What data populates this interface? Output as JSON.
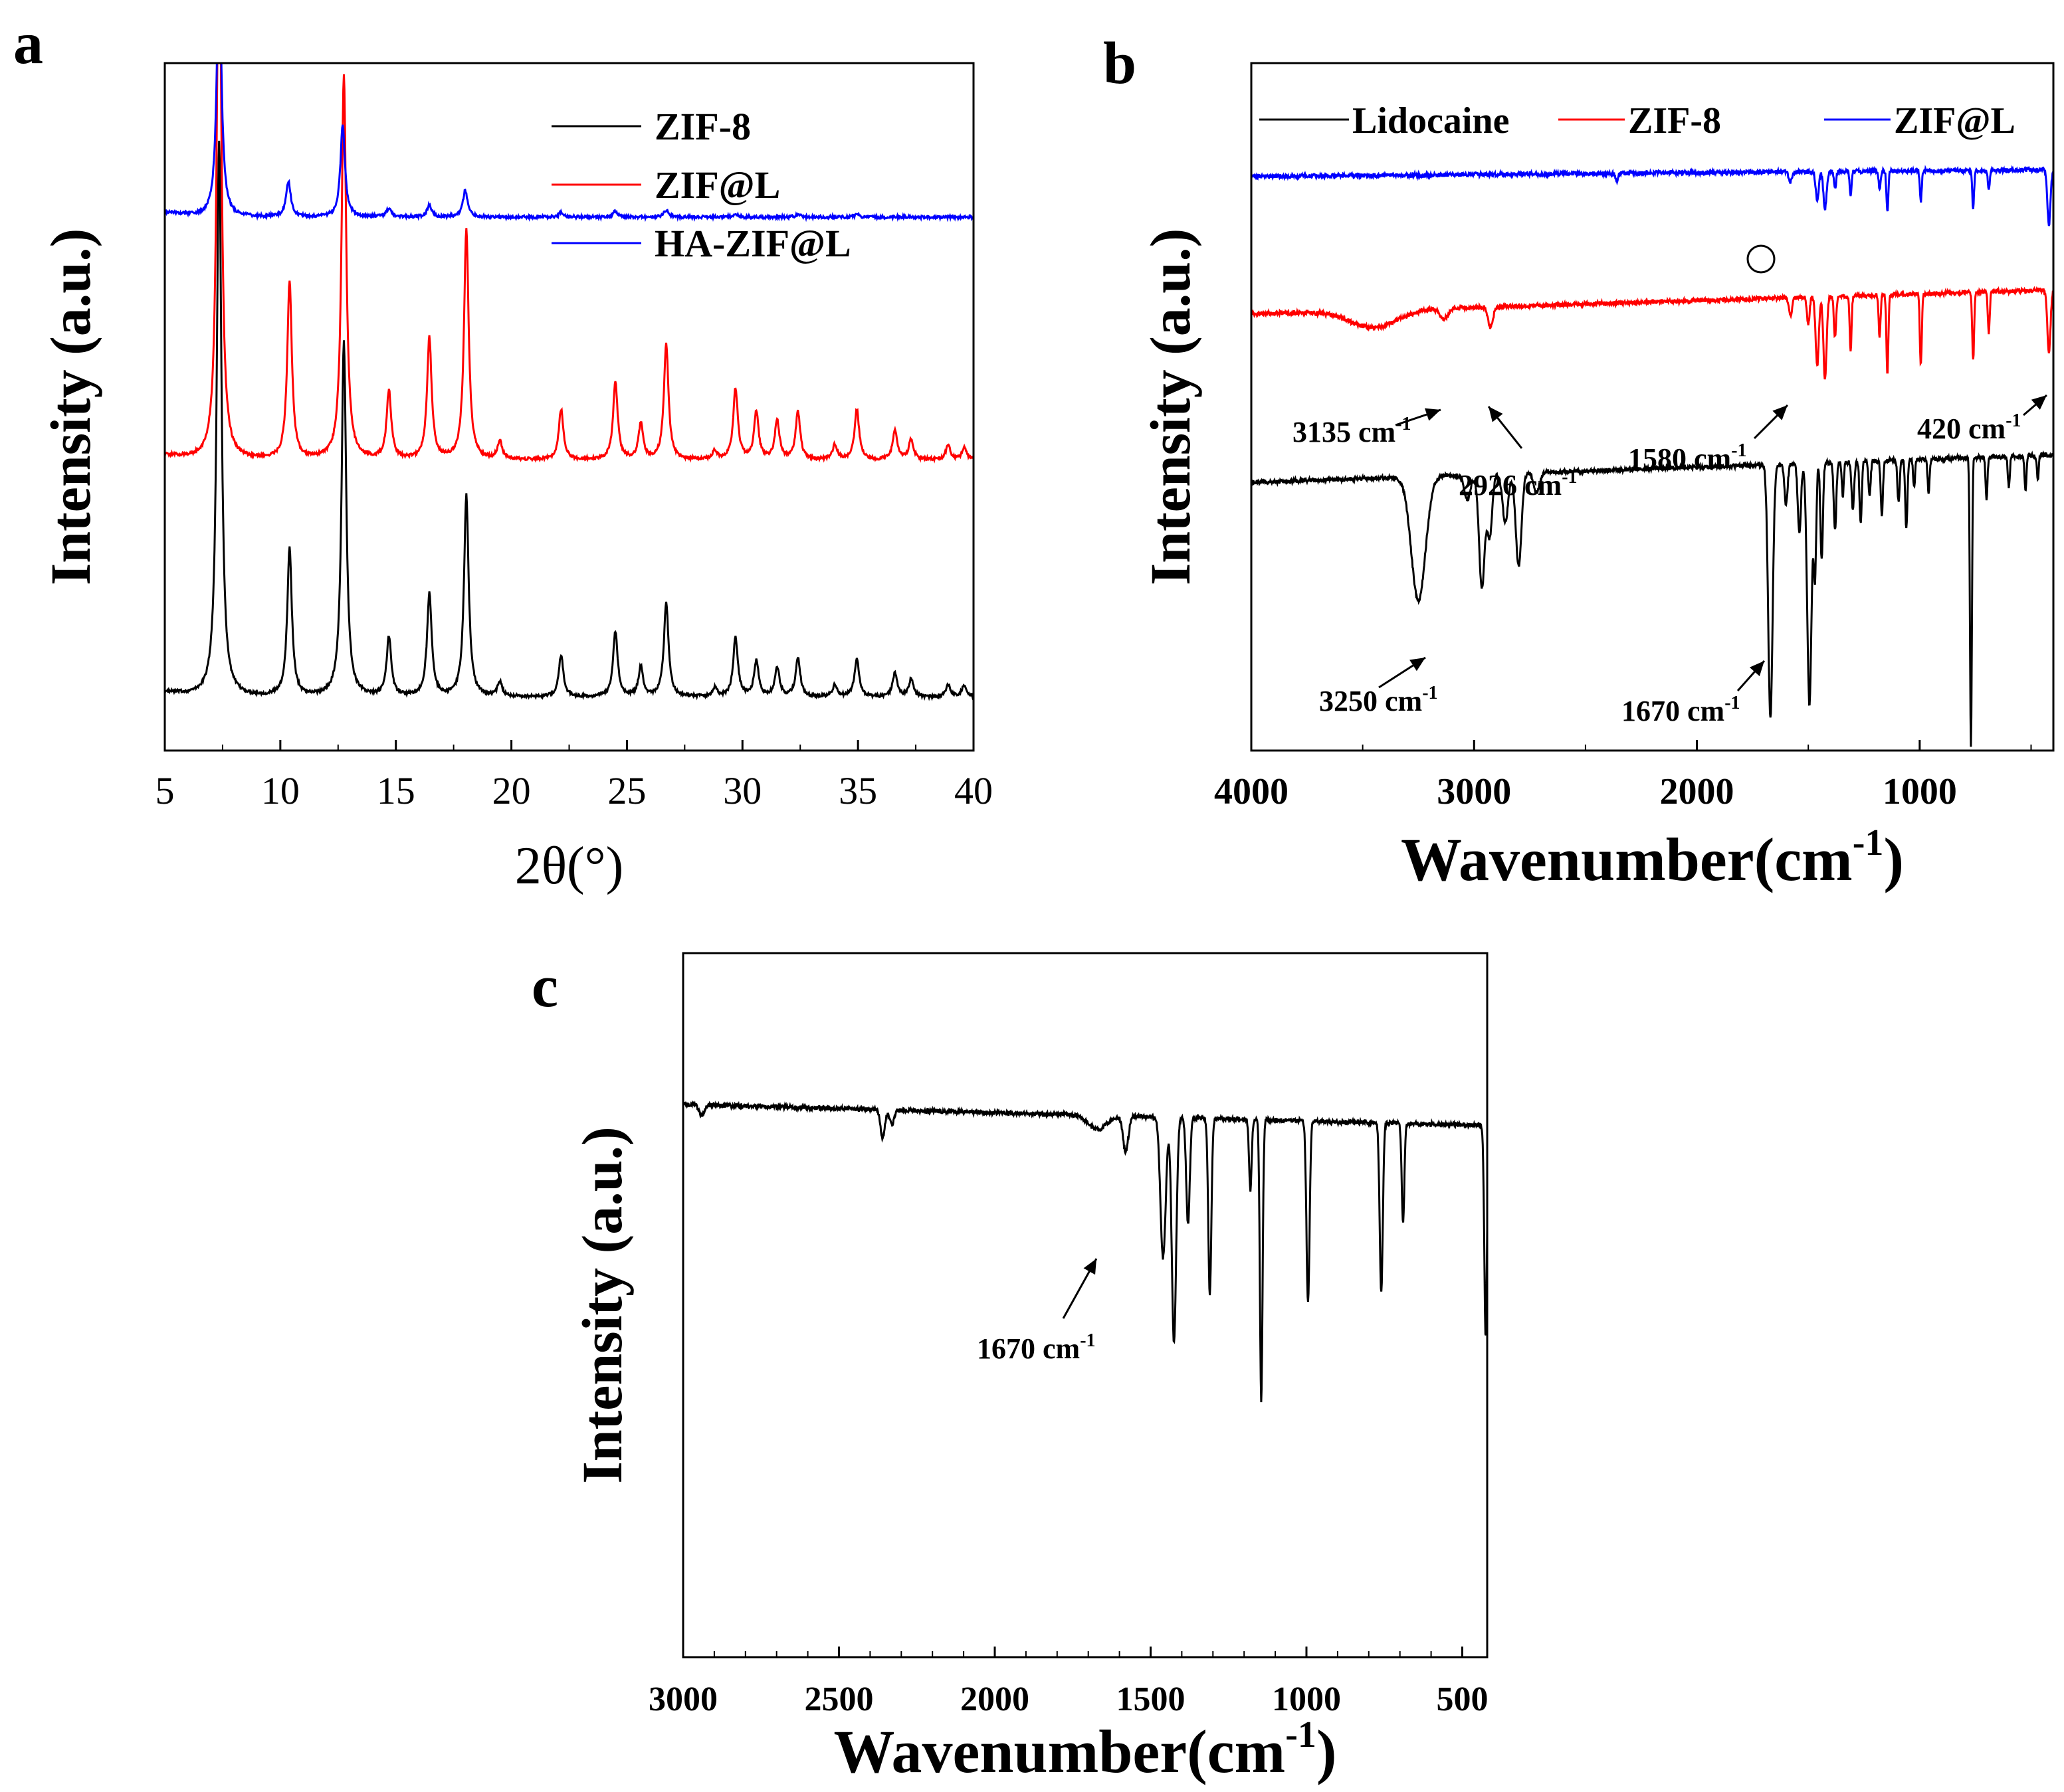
{
  "figure": {
    "description_panels": [
      "a",
      "b",
      "c"
    ]
  },
  "chart_data": [
    {
      "panel": "a",
      "type": "line",
      "title": "",
      "xlabel": "2θ(°)",
      "ylabel": "Intensity (a.u.)",
      "xlim": [
        5,
        40
      ],
      "ylim": [
        0,
        11.6
      ],
      "x_ticks": [
        "5",
        "10",
        "15",
        "20",
        "25",
        "30",
        "35",
        "40"
      ],
      "legend": {
        "position": "top-right"
      },
      "series": [
        {
          "name": "ZIF-8",
          "color": "#000000",
          "baseline": 0.9,
          "peaks": [
            [
              7.35,
              9.4
            ],
            [
              10.4,
              2.5
            ],
            [
              12.75,
              6.0
            ],
            [
              14.7,
              1.0
            ],
            [
              16.45,
              1.75
            ],
            [
              18.05,
              3.4
            ],
            [
              19.5,
              0.25
            ],
            [
              22.15,
              0.7
            ],
            [
              24.5,
              1.1
            ],
            [
              25.6,
              0.5
            ],
            [
              26.7,
              1.6
            ],
            [
              28.8,
              0.15
            ],
            [
              29.7,
              1.0
            ],
            [
              30.6,
              0.6
            ],
            [
              31.5,
              0.5
            ],
            [
              32.4,
              0.65
            ],
            [
              34.0,
              0.2
            ],
            [
              34.95,
              0.65
            ],
            [
              36.6,
              0.4
            ],
            [
              37.3,
              0.3
            ],
            [
              38.9,
              0.2
            ],
            [
              39.6,
              0.2
            ]
          ]
        },
        {
          "name": "ZIF@L",
          "color": "#ff0000",
          "baseline": 4.9,
          "peaks": [
            [
              7.35,
              9.5
            ],
            [
              10.4,
              3.0
            ],
            [
              12.75,
              6.5
            ],
            [
              14.7,
              1.15
            ],
            [
              16.45,
              2.05
            ],
            [
              18.05,
              3.9
            ],
            [
              19.5,
              0.3
            ],
            [
              22.15,
              0.85
            ],
            [
              24.5,
              1.3
            ],
            [
              25.6,
              0.6
            ],
            [
              26.7,
              1.95
            ],
            [
              28.8,
              0.15
            ],
            [
              29.7,
              1.2
            ],
            [
              30.6,
              0.8
            ],
            [
              31.5,
              0.65
            ],
            [
              32.4,
              0.8
            ],
            [
              34.0,
              0.25
            ],
            [
              34.95,
              0.85
            ],
            [
              36.6,
              0.5
            ],
            [
              37.3,
              0.35
            ],
            [
              38.9,
              0.25
            ],
            [
              39.6,
              0.2
            ]
          ]
        },
        {
          "name": "HA-ZIF@L",
          "color": "#0000ff",
          "baseline": 9.0,
          "peaks": [
            [
              7.35,
              4.3
            ],
            [
              10.35,
              0.6
            ],
            [
              12.7,
              1.55
            ],
            [
              14.7,
              0.15
            ],
            [
              16.45,
              0.2
            ],
            [
              18.0,
              0.45
            ],
            [
              22.15,
              0.08
            ],
            [
              24.5,
              0.1
            ],
            [
              26.7,
              0.12
            ],
            [
              29.7,
              0.06
            ],
            [
              32.4,
              0.05
            ],
            [
              34.95,
              0.05
            ]
          ]
        }
      ]
    },
    {
      "panel": "b",
      "type": "line",
      "title": "",
      "xlabel": "Wavenumber(cm-1)",
      "xlabel_main": "Wavenumber(cm",
      "xlabel_sup": "-1",
      "xlabel_close": ")",
      "ylabel": "Intensity (a.u.)",
      "xlim": [
        4000,
        400
      ],
      "ylim": [
        0,
        10
      ],
      "x_ticks": [
        "4000",
        "3000",
        "2000",
        "1000"
      ],
      "legend": {
        "position": "top"
      },
      "series": [
        {
          "name": "Lidocaine",
          "color": "#000000",
          "baseline": 3.9,
          "slope": 0.4,
          "bands": [
            [
              3250,
              1.8,
              45
            ],
            [
              3030,
              0.35,
              20
            ],
            [
              2965,
              1.65,
              18
            ],
            [
              2930,
              0.9,
              16
            ],
            [
              2860,
              0.7,
              18
            ],
            [
              2800,
              1.35,
              18
            ],
            [
              2720,
              0.3,
              18
            ],
            [
              1670,
              3.7,
              14
            ],
            [
              1600,
              0.6,
              10
            ],
            [
              1540,
              1.0,
              10
            ],
            [
              1495,
              3.5,
              14
            ],
            [
              1470,
              1.6,
              8
            ],
            [
              1440,
              1.4,
              8
            ],
            [
              1380,
              1.0,
              8
            ],
            [
              1345,
              0.5,
              6
            ],
            [
              1300,
              0.7,
              8
            ],
            [
              1265,
              0.9,
              7
            ],
            [
              1225,
              0.5,
              7
            ],
            [
              1170,
              0.8,
              7
            ],
            [
              1095,
              0.6,
              7
            ],
            [
              1060,
              1.0,
              7
            ],
            [
              1025,
              0.4,
              6
            ],
            [
              960,
              0.5,
              6
            ],
            [
              770,
              4.2,
              6
            ],
            [
              700,
              0.6,
              6
            ],
            [
              600,
              0.45,
              6
            ],
            [
              525,
              0.5,
              6
            ],
            [
              470,
              0.35,
              6
            ]
          ]
        },
        {
          "name": "ZIF-8",
          "color": "#ff0000",
          "baseline": 6.35,
          "slope": 0.35,
          "bands": [
            [
              3450,
              0.25,
              150
            ],
            [
              3135,
              0.15,
              25
            ],
            [
              2926,
              0.3,
              15
            ],
            [
              1580,
              0.25,
              10
            ],
            [
              1500,
              0.4,
              8
            ],
            [
              1460,
              1.0,
              10
            ],
            [
              1425,
              1.2,
              10
            ],
            [
              1380,
              0.6,
              7
            ],
            [
              1310,
              0.8,
              6
            ],
            [
              1180,
              0.6,
              6
            ],
            [
              1145,
              1.15,
              6
            ],
            [
              995,
              1.05,
              6
            ],
            [
              760,
              1.0,
              6
            ],
            [
              690,
              0.6,
              6
            ],
            [
              420,
              0.9,
              10
            ]
          ]
        },
        {
          "name": "ZIF@L",
          "color": "#0000ff",
          "baseline": 8.35,
          "slope": 0.1,
          "bands": [
            [
              2360,
              0.12,
              8
            ],
            [
              1580,
              0.15,
              10
            ],
            [
              1460,
              0.4,
              10
            ],
            [
              1425,
              0.55,
              10
            ],
            [
              1380,
              0.25,
              7
            ],
            [
              1310,
              0.35,
              6
            ],
            [
              1180,
              0.25,
              6
            ],
            [
              1145,
              0.6,
              6
            ],
            [
              995,
              0.45,
              6
            ],
            [
              760,
              0.55,
              6
            ],
            [
              690,
              0.3,
              6
            ],
            [
              420,
              0.8,
              10
            ]
          ]
        }
      ],
      "annotations": [
        {
          "label": "3135 cm-1",
          "text": "3135 cm",
          "sup": "-1"
        },
        {
          "label": "2926 cm-1",
          "text": "2926 cm",
          "sup": "-1"
        },
        {
          "label": "1580 cm-1",
          "text": "1580 cm",
          "sup": "-1"
        },
        {
          "label": "420 cm-1",
          "text": "420 cm",
          "sup": "-1"
        },
        {
          "label": "3250 cm-1",
          "text": "3250 cm",
          "sup": "-1"
        },
        {
          "label": "1670 cm-1",
          "text": "1670 cm",
          "sup": "-1"
        }
      ]
    },
    {
      "panel": "c",
      "type": "line",
      "title": "",
      "xlabel": "Wavenumber(cm-1)",
      "xlabel_main": "Wavenumber(cm",
      "xlabel_sup": "-1",
      "xlabel_close": ")",
      "ylabel": "Intensity (a.u.)",
      "xlim": [
        3000,
        420
      ],
      "ylim": [
        0,
        10
      ],
      "x_ticks": [
        "3000",
        "2500",
        "2000",
        "1500",
        "1000",
        "500"
      ],
      "series": [
        {
          "name": "HA-ZIF@L",
          "color": "#000000",
          "baseline": 7.85,
          "slope": -0.3,
          "bands": [
            [
              2940,
              0.15,
              12
            ],
            [
              2360,
              0.4,
              10
            ],
            [
              2330,
              0.2,
              10
            ],
            [
              1670,
              0.2,
              40
            ],
            [
              1580,
              0.5,
              12
            ],
            [
              1460,
              2.0,
              12
            ],
            [
              1425,
              3.2,
              10
            ],
            [
              1380,
              1.5,
              8
            ],
            [
              1310,
              2.5,
              7
            ],
            [
              1180,
              1.0,
              6
            ],
            [
              1145,
              4.0,
              6
            ],
            [
              995,
              2.6,
              7
            ],
            [
              760,
              2.4,
              7
            ],
            [
              690,
              1.4,
              6
            ],
            [
              425,
              3.0,
              6
            ]
          ]
        }
      ],
      "annotations": [
        {
          "label": "1670 cm-1",
          "text": "1670 cm",
          "sup": "-1"
        }
      ]
    }
  ]
}
